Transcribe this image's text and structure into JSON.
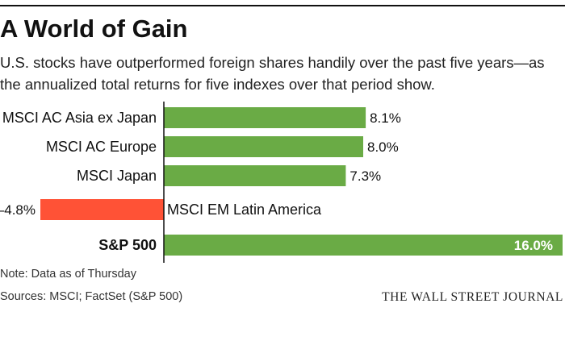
{
  "header": {
    "title": "A World of Gain",
    "subtitle": "U.S. stocks have outperformed foreign shares handily over the past five years—as the annualized total returns for five indexes over that period show."
  },
  "chart_data": {
    "type": "bar",
    "orientation": "horizontal",
    "categories": [
      "MSCI AC Asia ex Japan",
      "MSCI AC Europe",
      "MSCI Japan",
      "MSCI EM Latin America",
      "S&P 500"
    ],
    "values": [
      8.1,
      8.0,
      7.3,
      -4.8,
      16.0
    ],
    "labels": [
      "8.1%",
      "8.0%",
      "7.3%",
      "–4.8%",
      "16.0%"
    ],
    "xlim": [
      -4.8,
      16.0
    ],
    "grid": false,
    "colors": {
      "positive": "#6aab45",
      "negative": "#ff5236"
    }
  },
  "footer": {
    "note": "Note: Data as of Thursday",
    "sources": "Sources: MSCI; FactSet (S&P 500)",
    "brand": "THE WALL STREET JOURNAL"
  }
}
